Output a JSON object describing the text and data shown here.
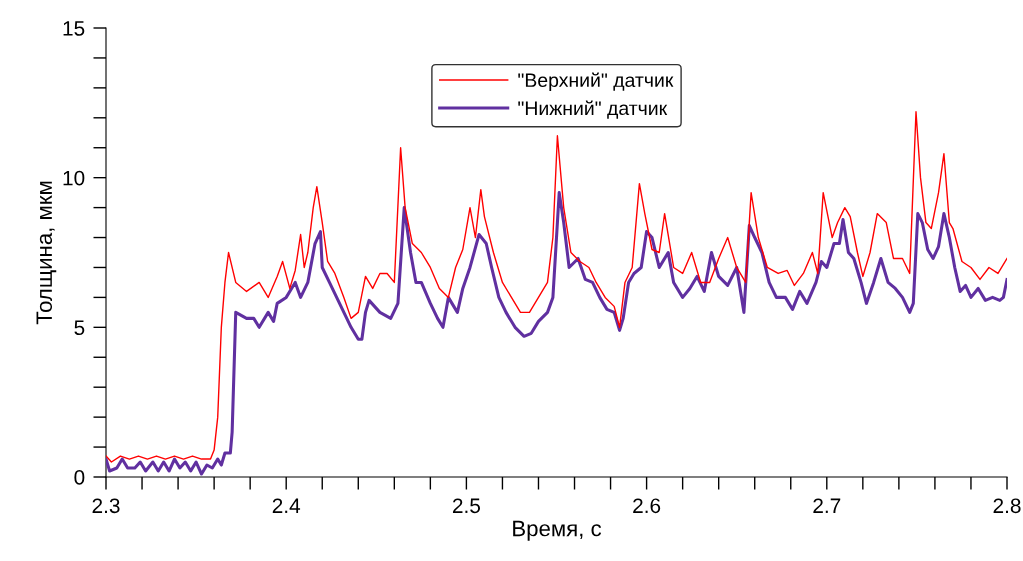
{
  "chart_data": {
    "type": "line",
    "xlabel": "Время, с",
    "ylabel": "Толщина, мкм",
    "xlim": [
      2.3,
      2.8
    ],
    "ylim": [
      0,
      15
    ],
    "xticks": [
      2.3,
      {
        "value": 2.32,
        "label": null
      },
      {
        "value": 2.34,
        "label": null
      },
      {
        "value": 2.36,
        "label": null
      },
      {
        "value": 2.38,
        "label": null
      },
      2.4,
      {
        "value": 2.42,
        "label": null
      },
      {
        "value": 2.44,
        "label": null
      },
      {
        "value": 2.46,
        "label": null
      },
      {
        "value": 2.48,
        "label": null
      },
      2.5,
      {
        "value": 2.52,
        "label": null
      },
      {
        "value": 2.54,
        "label": null
      },
      {
        "value": 2.56,
        "label": null
      },
      {
        "value": 2.58,
        "label": null
      },
      2.6,
      {
        "value": 2.62,
        "label": null
      },
      {
        "value": 2.64,
        "label": null
      },
      {
        "value": 2.66,
        "label": null
      },
      {
        "value": 2.68,
        "label": null
      },
      2.7,
      {
        "value": 2.72,
        "label": null
      },
      {
        "value": 2.74,
        "label": null
      },
      {
        "value": 2.76,
        "label": null
      },
      {
        "value": 2.78,
        "label": null
      },
      2.8
    ],
    "yticks": [
      0,
      {
        "value": 1,
        "label": null
      },
      {
        "value": 2,
        "label": null
      },
      {
        "value": 3,
        "label": null
      },
      {
        "value": 4,
        "label": null
      },
      5,
      {
        "value": 6,
        "label": null
      },
      {
        "value": 7,
        "label": null
      },
      {
        "value": 8,
        "label": null
      },
      {
        "value": 9,
        "label": null
      },
      10,
      {
        "value": 11,
        "label": null
      },
      {
        "value": 12,
        "label": null
      },
      {
        "value": 13,
        "label": null
      },
      {
        "value": 14,
        "label": null
      },
      15
    ],
    "grid": false,
    "legend": "top",
    "marker": "none",
    "line_style": "solid",
    "series": [
      {
        "name": "\"Верхний\" датчик",
        "color": "#ff0000",
        "x": [
          2.3,
          2.303,
          2.308,
          2.313,
          2.318,
          2.323,
          2.328,
          2.333,
          2.338,
          2.343,
          2.348,
          2.353,
          2.358,
          2.36,
          2.362,
          2.364,
          2.366,
          2.368,
          2.372,
          2.378,
          2.385,
          2.39,
          2.395,
          2.398,
          2.402,
          2.405,
          2.408,
          2.41,
          2.412,
          2.415,
          2.417,
          2.42,
          2.423,
          2.427,
          2.432,
          2.436,
          2.44,
          2.444,
          2.448,
          2.452,
          2.456,
          2.46,
          2.4635,
          2.466,
          2.47,
          2.475,
          2.48,
          2.485,
          2.49,
          2.494,
          2.498,
          2.502,
          2.505,
          2.508,
          2.51,
          2.515,
          2.52,
          2.525,
          2.53,
          2.535,
          2.54,
          2.545,
          2.548,
          2.5505,
          2.554,
          2.558,
          2.563,
          2.568,
          2.572,
          2.577,
          2.582,
          2.585,
          2.588,
          2.592,
          2.596,
          2.599,
          2.603,
          2.607,
          2.61,
          2.615,
          2.62,
          2.625,
          2.63,
          2.635,
          2.64,
          2.645,
          2.65,
          2.655,
          2.658,
          2.662,
          2.667,
          2.673,
          2.678,
          2.682,
          2.687,
          2.692,
          2.695,
          2.698,
          2.703,
          2.706,
          2.71,
          2.713,
          2.717,
          2.72,
          2.724,
          2.728,
          2.733,
          2.737,
          2.742,
          2.746,
          2.7495,
          2.752,
          2.755,
          2.758,
          2.762,
          2.765,
          2.768,
          2.77,
          2.775,
          2.78,
          2.785,
          2.79,
          2.795,
          2.8
        ],
        "values": [
          0.7,
          0.5,
          0.7,
          0.6,
          0.7,
          0.6,
          0.7,
          0.6,
          0.7,
          0.6,
          0.7,
          0.6,
          0.6,
          0.9,
          2.0,
          5.0,
          6.5,
          7.5,
          6.5,
          6.2,
          6.5,
          6.0,
          6.7,
          7.2,
          6.3,
          6.9,
          8.1,
          7.0,
          7.5,
          9.0,
          9.7,
          8.5,
          7.2,
          6.8,
          6.0,
          5.3,
          5.5,
          6.7,
          6.3,
          6.8,
          6.8,
          6.5,
          11.0,
          9.0,
          7.8,
          7.5,
          7.0,
          6.3,
          6.0,
          7.0,
          7.6,
          9.0,
          8.0,
          9.6,
          8.7,
          7.5,
          6.5,
          6.0,
          5.5,
          5.5,
          6.0,
          6.5,
          8.0,
          11.4,
          9.0,
          7.5,
          7.2,
          7.0,
          6.5,
          6.0,
          5.7,
          5.0,
          6.5,
          7.0,
          9.8,
          8.8,
          7.6,
          7.5,
          8.8,
          7.0,
          6.8,
          7.5,
          6.5,
          6.5,
          7.3,
          8.0,
          7.0,
          6.5,
          9.5,
          8.0,
          7.0,
          6.8,
          6.9,
          6.4,
          6.8,
          7.5,
          6.8,
          9.5,
          8.0,
          8.5,
          9.0,
          8.7,
          7.5,
          6.7,
          7.5,
          8.8,
          8.5,
          7.3,
          7.3,
          6.8,
          12.2,
          10.0,
          8.5,
          8.3,
          9.5,
          10.8,
          8.5,
          8.3,
          7.2,
          7.0,
          6.6,
          7.0,
          6.8,
          7.3
        ]
      },
      {
        "name": "\"Нижний\" датчик",
        "color": "#6030a0",
        "x": [
          2.3,
          2.302,
          2.306,
          2.309,
          2.312,
          2.316,
          2.319,
          2.322,
          2.326,
          2.329,
          2.332,
          2.335,
          2.338,
          2.341,
          2.344,
          2.347,
          2.35,
          2.353,
          2.356,
          2.359,
          2.362,
          2.364,
          2.366,
          2.369,
          2.37,
          2.372,
          2.378,
          2.382,
          2.385,
          2.39,
          2.393,
          2.395,
          2.4,
          2.405,
          2.408,
          2.412,
          2.416,
          2.419,
          2.42,
          2.424,
          2.428,
          2.432,
          2.436,
          2.44,
          2.442,
          2.444,
          2.446,
          2.452,
          2.458,
          2.462,
          2.4655,
          2.469,
          2.472,
          2.475,
          2.48,
          2.484,
          2.487,
          2.49,
          2.495,
          2.498,
          2.502,
          2.507,
          2.511,
          2.514,
          2.518,
          2.522,
          2.527,
          2.532,
          2.536,
          2.54,
          2.545,
          2.548,
          2.5515,
          2.554,
          2.557,
          2.562,
          2.566,
          2.57,
          2.574,
          2.578,
          2.582,
          2.585,
          2.587,
          2.59,
          2.593,
          2.597,
          2.6,
          2.603,
          2.607,
          2.612,
          2.615,
          2.62,
          2.624,
          2.628,
          2.632,
          2.636,
          2.64,
          2.645,
          2.65,
          2.654,
          2.657,
          2.66,
          2.664,
          2.668,
          2.672,
          2.677,
          2.681,
          2.685,
          2.689,
          2.694,
          2.697,
          2.7,
          2.704,
          2.707,
          2.709,
          2.712,
          2.715,
          2.719,
          2.722,
          2.726,
          2.73,
          2.734,
          2.738,
          2.742,
          2.746,
          2.748,
          2.7505,
          2.753,
          2.756,
          2.759,
          2.762,
          2.765,
          2.768,
          2.771,
          2.774,
          2.777,
          2.78,
          2.784,
          2.788,
          2.792,
          2.796,
          2.798,
          2.8
        ],
        "values": [
          0.6,
          0.2,
          0.3,
          0.6,
          0.3,
          0.3,
          0.5,
          0.2,
          0.5,
          0.2,
          0.5,
          0.2,
          0.6,
          0.3,
          0.5,
          0.2,
          0.5,
          0.1,
          0.4,
          0.3,
          0.6,
          0.4,
          0.8,
          0.8,
          1.5,
          5.5,
          5.3,
          5.3,
          5.0,
          5.5,
          5.2,
          5.8,
          6.0,
          6.5,
          6.0,
          6.5,
          7.8,
          8.2,
          7.0,
          6.5,
          6.0,
          5.5,
          5.0,
          4.6,
          4.6,
          5.5,
          5.9,
          5.5,
          5.3,
          5.8,
          9.0,
          7.5,
          6.5,
          6.5,
          5.8,
          5.3,
          5.0,
          6.0,
          5.5,
          6.3,
          7.0,
          8.1,
          7.8,
          7.0,
          6.0,
          5.5,
          5.0,
          4.7,
          4.8,
          5.2,
          5.5,
          6.0,
          9.5,
          8.5,
          7.0,
          7.3,
          6.6,
          6.5,
          6.0,
          5.6,
          5.5,
          4.9,
          5.3,
          6.5,
          6.8,
          7.0,
          8.2,
          8.0,
          7.0,
          7.5,
          6.5,
          6.0,
          6.3,
          6.7,
          6.2,
          7.5,
          6.7,
          6.4,
          7.0,
          5.5,
          8.4,
          8.0,
          7.5,
          6.5,
          6.0,
          6.0,
          5.6,
          6.2,
          5.8,
          6.5,
          7.2,
          7.0,
          7.8,
          7.8,
          8.6,
          7.5,
          7.3,
          6.5,
          5.8,
          6.5,
          7.3,
          6.5,
          6.3,
          6.0,
          5.5,
          5.8,
          8.8,
          8.5,
          7.6,
          7.3,
          7.7,
          8.8,
          8.0,
          7.0,
          6.2,
          6.4,
          6.0,
          6.3,
          5.9,
          6.0,
          5.9,
          6.0,
          6.6
        ]
      }
    ]
  }
}
